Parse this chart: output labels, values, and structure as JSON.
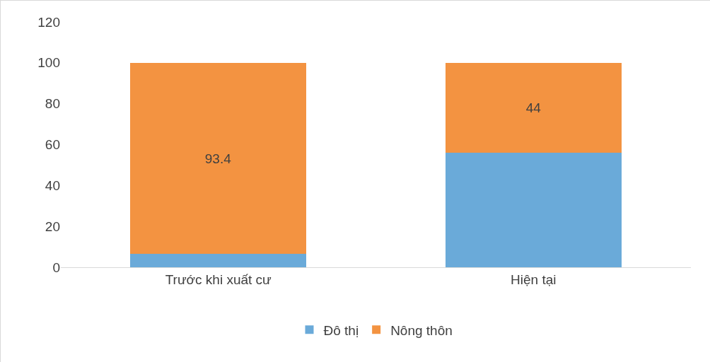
{
  "chart_data": {
    "type": "bar",
    "stacked": true,
    "categories": [
      "Trước khi xuất cư",
      "Hiện tại"
    ],
    "series": [
      {
        "name": "Đô thị",
        "color": "#6aaad9",
        "values": [
          6.6,
          56
        ],
        "value_labels": [
          null,
          null
        ]
      },
      {
        "name": "Nông thôn",
        "color": "#f39341",
        "values": [
          93.4,
          44
        ],
        "value_labels": [
          "93.4",
          "44"
        ]
      }
    ],
    "ylim": [
      0,
      120
    ],
    "yticks": [
      0,
      20,
      40,
      60,
      80,
      100,
      120
    ],
    "grid": false,
    "legend": "bottom"
  }
}
